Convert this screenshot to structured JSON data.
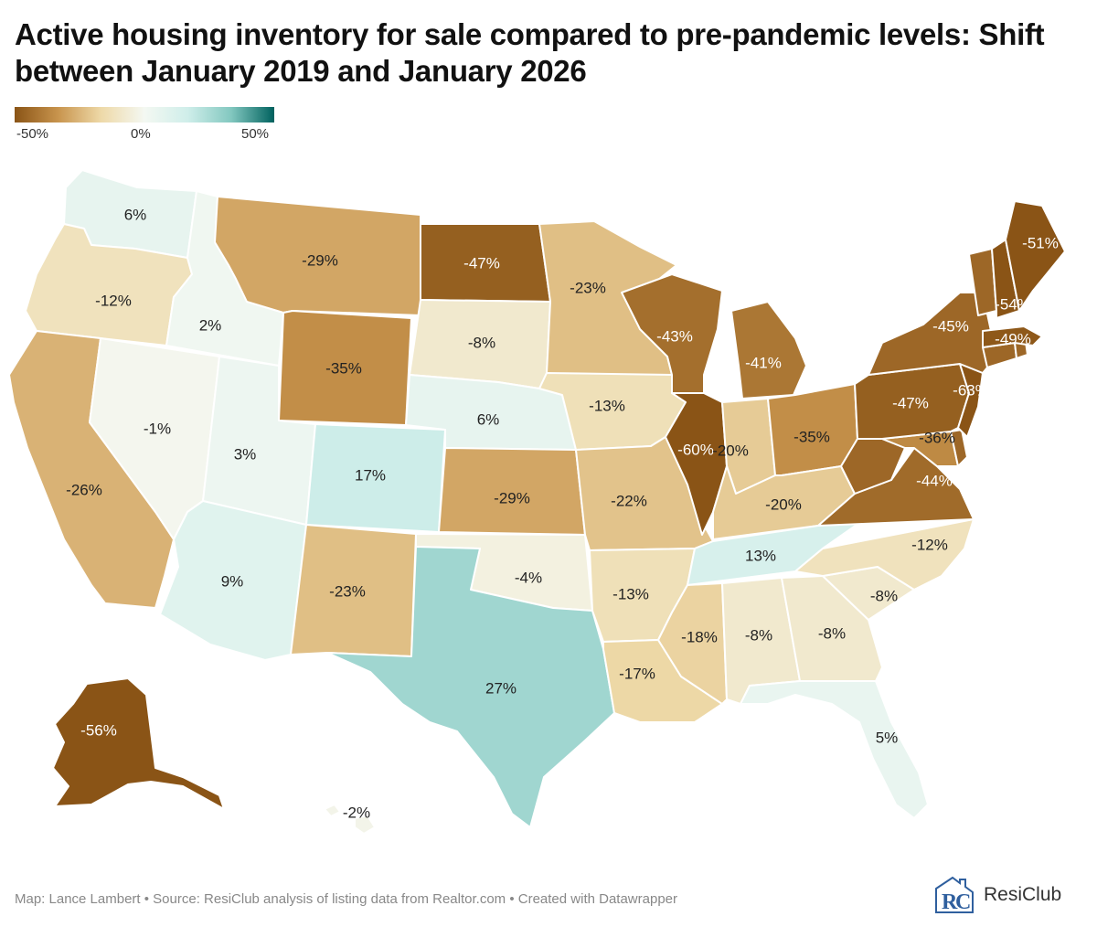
{
  "title": "Active housing inventory for sale compared to pre-pandemic levels: Shift between January 2019 and January 2026",
  "legend": {
    "min_label": "-50%",
    "mid_label": "0%",
    "max_label": "50%",
    "colors": [
      "#8a5416",
      "#c8944d",
      "#eed9a8",
      "#f4f8f2",
      "#cfeeea",
      "#83c8c0",
      "#00615e"
    ]
  },
  "footer": {
    "credit": "Map: Lance Lambert • Source: ResiClub analysis of listing data from Realtor.com • Created with Datawrapper"
  },
  "logo": {
    "text": "ResiClub",
    "accent": "#2f5f9e"
  },
  "map_data": {
    "type": "choropleth",
    "unit": "%",
    "regions": [
      {
        "state": "WA",
        "label": "6%",
        "value": 6
      },
      {
        "state": "OR",
        "label": "-12%",
        "value": -12
      },
      {
        "state": "CA",
        "label": "-26%",
        "value": -26
      },
      {
        "state": "ID",
        "label": "2%",
        "value": 2
      },
      {
        "state": "NV",
        "label": "-1%",
        "value": -1
      },
      {
        "state": "MT",
        "label": "-29%",
        "value": -29
      },
      {
        "state": "WY",
        "label": "-35%",
        "value": -35
      },
      {
        "state": "UT",
        "label": "3%",
        "value": 3
      },
      {
        "state": "AZ",
        "label": "9%",
        "value": 9
      },
      {
        "state": "CO",
        "label": "17%",
        "value": 17
      },
      {
        "state": "NM",
        "label": "-23%",
        "value": -23
      },
      {
        "state": "ND",
        "label": "-47%",
        "value": -47
      },
      {
        "state": "SD",
        "label": "-8%",
        "value": -8
      },
      {
        "state": "NE",
        "label": "6%",
        "value": 6
      },
      {
        "state": "KS",
        "label": "-29%",
        "value": -29
      },
      {
        "state": "OK",
        "label": "-4%",
        "value": -4
      },
      {
        "state": "TX",
        "label": "27%",
        "value": 27
      },
      {
        "state": "MN",
        "label": "-23%",
        "value": -23
      },
      {
        "state": "IA",
        "label": "-13%",
        "value": -13
      },
      {
        "state": "MO",
        "label": "-22%",
        "value": -22
      },
      {
        "state": "AR",
        "label": "-13%",
        "value": -13
      },
      {
        "state": "LA",
        "label": "-17%",
        "value": -17
      },
      {
        "state": "WI",
        "label": "-43%",
        "value": -43
      },
      {
        "state": "IL",
        "label": "-60%",
        "value": -60
      },
      {
        "state": "MI",
        "label": "-41%",
        "value": -41
      },
      {
        "state": "IN",
        "label": "-20%",
        "value": -20
      },
      {
        "state": "OH",
        "label": "-35%",
        "value": -35
      },
      {
        "state": "KY",
        "label": "-20%",
        "value": -20
      },
      {
        "state": "TN",
        "label": "13%",
        "value": 13
      },
      {
        "state": "MS",
        "label": "-18%",
        "value": -18
      },
      {
        "state": "AL",
        "label": "-8%",
        "value": -8
      },
      {
        "state": "GA",
        "label": "-8%",
        "value": -8
      },
      {
        "state": "FL",
        "label": "5%",
        "value": 5
      },
      {
        "state": "SC",
        "label": "-8%",
        "value": -8
      },
      {
        "state": "NC",
        "label": "-12%",
        "value": -12
      },
      {
        "state": "VA",
        "label": "-44%",
        "value": -44
      },
      {
        "state": "WV",
        "label": "",
        "value": null
      },
      {
        "state": "MD",
        "label": "-36%",
        "value": -36
      },
      {
        "state": "DE",
        "label": "",
        "value": null
      },
      {
        "state": "PA",
        "label": "-47%",
        "value": -47
      },
      {
        "state": "NJ",
        "label": "-63%",
        "value": -63
      },
      {
        "state": "NY",
        "label": "-45%",
        "value": -45
      },
      {
        "state": "CT",
        "label": "",
        "value": null
      },
      {
        "state": "RI",
        "label": "",
        "value": null
      },
      {
        "state": "MA",
        "label": "-49%",
        "value": -49
      },
      {
        "state": "VT",
        "label": "",
        "value": null
      },
      {
        "state": "NH",
        "label": "-54%",
        "value": -54
      },
      {
        "state": "ME",
        "label": "-51%",
        "value": -51
      },
      {
        "state": "AK",
        "label": "-56%",
        "value": -56
      },
      {
        "state": "HI",
        "label": "-2%",
        "value": -2
      }
    ]
  }
}
